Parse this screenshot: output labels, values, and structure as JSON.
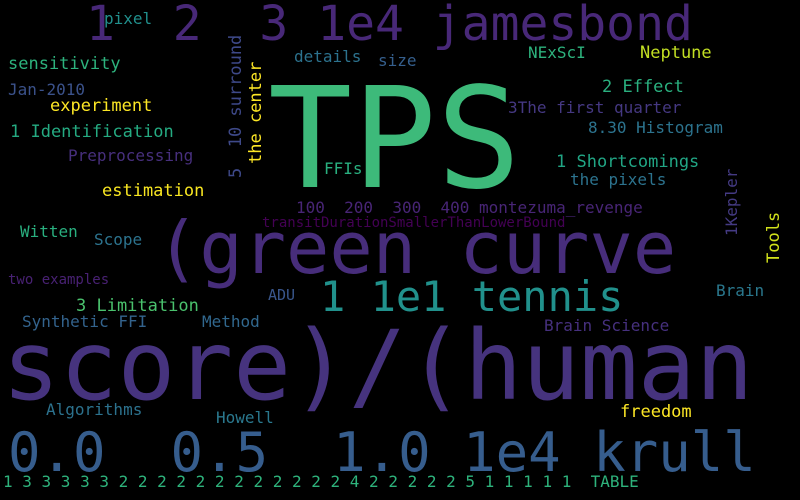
{
  "background": "#000000",
  "words": [
    {
      "text": "TPS",
      "color": "#3dba7a"
    },
    {
      "text": "score)/(human",
      "color": "#46337e"
    },
    {
      "text": "(green curve",
      "color": "#472d7b"
    },
    {
      "text": "1  2  3 1e4 jamesbond",
      "color": "#482878"
    },
    {
      "text": "0.0  0.5  1.0 1e4 krull",
      "color": "#365d8d"
    },
    {
      "text": "1 1e1 tennis",
      "color": "#21918c"
    },
    {
      "text": "1 3 3 3 3 3 2 2 2 2 2 2 2 2 2 2 2 2 4 2 2 2 2 2 5 1 1 1 1 1  TABLE",
      "color": "#2eb37c"
    },
    {
      "text": "pixel",
      "color": "#21908d"
    },
    {
      "text": "sensitivity",
      "color": "#2db27d"
    },
    {
      "text": "Jan-2010",
      "color": "#3b528b"
    },
    {
      "text": "experiment",
      "color": "#fde725"
    },
    {
      "text": "1 Identification",
      "color": "#25ab82"
    },
    {
      "text": "Preprocessing",
      "color": "#472f7d"
    },
    {
      "text": "estimation",
      "color": "#f8e621"
    },
    {
      "text": "Witten",
      "color": "#29af7f"
    },
    {
      "text": "Scope",
      "color": "#2c738e"
    },
    {
      "text": "two examples",
      "color": "#482173"
    },
    {
      "text": "3 Limitation",
      "color": "#4ac16d"
    },
    {
      "text": "Synthetic FFI",
      "color": "#33638d"
    },
    {
      "text": "Method",
      "color": "#31688e"
    },
    {
      "text": "Algorithms",
      "color": "#2c728e"
    },
    {
      "text": "Howell",
      "color": "#2a788e"
    },
    {
      "text": "ADU",
      "color": "#39568c"
    },
    {
      "text": "freedom",
      "color": "#fde725"
    },
    {
      "text": "details",
      "color": "#2c728e"
    },
    {
      "text": "size",
      "color": "#355f8d"
    },
    {
      "text": "NExScI",
      "color": "#2db27d"
    },
    {
      "text": "Neptune",
      "color": "#c2df23"
    },
    {
      "text": "2 Effect",
      "color": "#2ab07f"
    },
    {
      "text": "3The first quarter",
      "color": "#453882"
    },
    {
      "text": "8.30 Histogram",
      "color": "#2c738e"
    },
    {
      "text": "1 Shortcomings",
      "color": "#21a685"
    },
    {
      "text": "the pixels",
      "color": "#2c738e"
    },
    {
      "text": "100  200  300  400 montezuma_revenge",
      "color": "#482576"
    },
    {
      "text": "transitDurationSmallerThanLowerBound",
      "color": "#440154"
    },
    {
      "text": "FFIs",
      "color": "#29af7f"
    },
    {
      "text": "Brain",
      "color": "#2a788e"
    },
    {
      "text": "Brain Science",
      "color": "#46307e"
    },
    {
      "text": "5  10 surround",
      "color": "#3e4989"
    },
    {
      "text": "the center",
      "color": "#fde725"
    },
    {
      "text": "1Kepler",
      "color": "#443a83"
    },
    {
      "text": "Tools",
      "color": "#d2e21b"
    }
  ]
}
